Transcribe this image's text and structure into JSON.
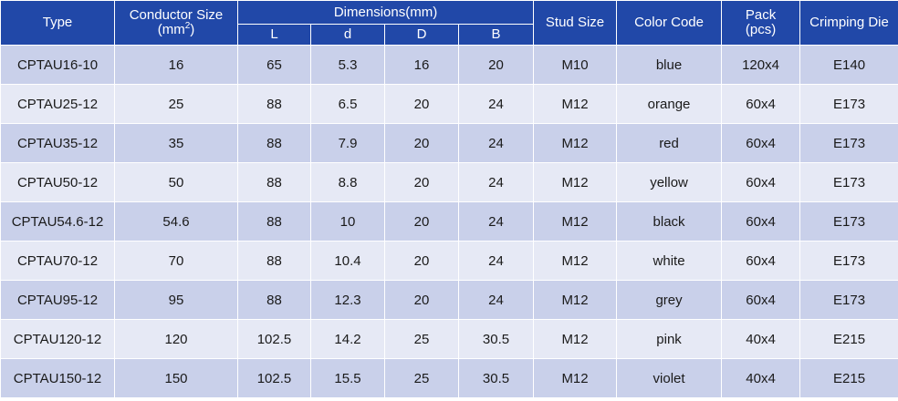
{
  "header": {
    "type": "Type",
    "conductor_size": "Conductor Size",
    "conductor_unit_prefix": "(mm",
    "conductor_unit_sup": "2",
    "conductor_unit_suffix": ")",
    "dimensions": "Dimensions(mm)",
    "dim_l": "L",
    "dim_d_small": "d",
    "dim_d": "D",
    "dim_b": "B",
    "stud_size": "Stud Size",
    "color_code": "Color Code",
    "pack": "Pack",
    "pack_unit": "(pcs)",
    "crimping_die": "Crimping Die"
  },
  "rows": [
    {
      "type": "CPTAU16-10",
      "size": "16",
      "l": "65",
      "d_small": "5.3",
      "d": "16",
      "b": "20",
      "stud": "M10",
      "color": "blue",
      "pack": "120x4",
      "die": "E140"
    },
    {
      "type": "CPTAU25-12",
      "size": "25",
      "l": "88",
      "d_small": "6.5",
      "d": "20",
      "b": "24",
      "stud": "M12",
      "color": "orange",
      "pack": "60x4",
      "die": "E173"
    },
    {
      "type": "CPTAU35-12",
      "size": "35",
      "l": "88",
      "d_small": "7.9",
      "d": "20",
      "b": "24",
      "stud": "M12",
      "color": "red",
      "pack": "60x4",
      "die": "E173"
    },
    {
      "type": "CPTAU50-12",
      "size": "50",
      "l": "88",
      "d_small": "8.8",
      "d": "20",
      "b": "24",
      "stud": "M12",
      "color": "yellow",
      "pack": "60x4",
      "die": "E173"
    },
    {
      "type": "CPTAU54.6-12",
      "size": "54.6",
      "l": "88",
      "d_small": "10",
      "d": "20",
      "b": "24",
      "stud": "M12",
      "color": "black",
      "pack": "60x4",
      "die": "E173"
    },
    {
      "type": "CPTAU70-12",
      "size": "70",
      "l": "88",
      "d_small": "10.4",
      "d": "20",
      "b": "24",
      "stud": "M12",
      "color": "white",
      "pack": "60x4",
      "die": "E173"
    },
    {
      "type": "CPTAU95-12",
      "size": "95",
      "l": "88",
      "d_small": "12.3",
      "d": "20",
      "b": "24",
      "stud": "M12",
      "color": "grey",
      "pack": "60x4",
      "die": "E173"
    },
    {
      "type": "CPTAU120-12",
      "size": "120",
      "l": "102.5",
      "d_small": "14.2",
      "d": "25",
      "b": "30.5",
      "stud": "M12",
      "color": "pink",
      "pack": "40x4",
      "die": "E215"
    },
    {
      "type": "CPTAU150-12",
      "size": "150",
      "l": "102.5",
      "d_small": "15.5",
      "d": "25",
      "b": "30.5",
      "stud": "M12",
      "color": "violet",
      "pack": "40x4",
      "die": "E215"
    }
  ]
}
